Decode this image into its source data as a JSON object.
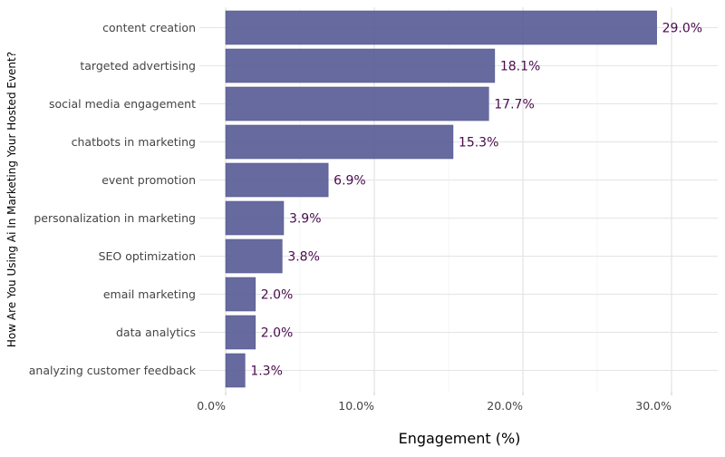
{
  "chart_data": {
    "type": "bar",
    "orientation": "horizontal",
    "categories": [
      "content creation",
      "targeted advertising",
      "social media engagement",
      "chatbots in marketing",
      "event promotion",
      "personalization in marketing",
      "SEO optimization",
      "email marketing",
      "data analytics",
      "analyzing customer feedback"
    ],
    "values": [
      29.0,
      18.1,
      17.7,
      15.3,
      6.9,
      3.9,
      3.8,
      2.0,
      2.0,
      1.3
    ],
    "data_labels": [
      "29.0%",
      "18.1%",
      "17.7%",
      "15.3%",
      "6.9%",
      "3.9%",
      "3.8%",
      "2.0%",
      "2.0%",
      "1.3%"
    ],
    "xlabel": "Engagement (%)",
    "ylabel": "How Are You Using Ai In Marketing Your Hosted Event?",
    "xlim": [
      0,
      33.5
    ],
    "x_ticks": [
      0,
      10,
      20,
      30
    ],
    "x_tick_labels": [
      "0.0%",
      "10.0%",
      "20.0%",
      "30.0%"
    ],
    "grid": true,
    "bar_color": "#5b5f97",
    "label_color": "#4a0a4e"
  }
}
